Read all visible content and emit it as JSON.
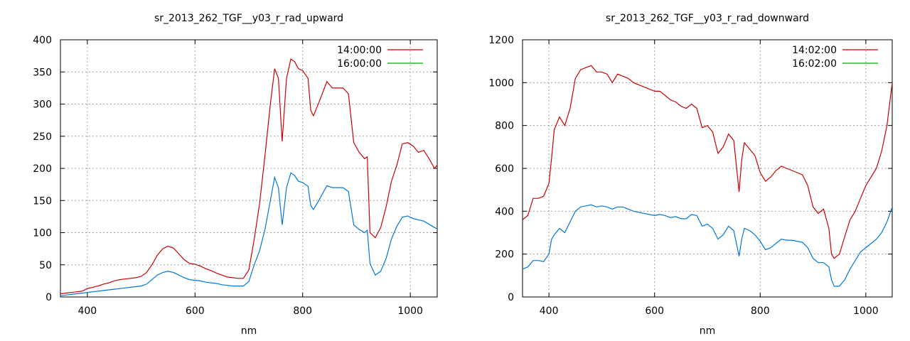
{
  "chart_data": [
    {
      "type": "line",
      "title": "sr_2013_262_TGF__y03_r_rad_upward",
      "xlabel": "nm",
      "ylabel": "",
      "xlim": [
        350,
        1050
      ],
      "ylim": [
        0,
        400
      ],
      "xticks": [
        400,
        600,
        800,
        1000
      ],
      "yticks": [
        0,
        50,
        100,
        150,
        200,
        250,
        300,
        350,
        400
      ],
      "grid": true,
      "legend_position": "top-right",
      "series": [
        {
          "name": "14:00:00",
          "color": "#cc0000",
          "x": [
            350,
            360,
            370,
            380,
            390,
            400,
            410,
            420,
            430,
            440,
            450,
            460,
            470,
            480,
            490,
            500,
            510,
            520,
            530,
            540,
            550,
            560,
            570,
            580,
            590,
            600,
            610,
            620,
            630,
            640,
            650,
            660,
            670,
            680,
            690,
            700,
            710,
            720,
            730,
            740,
            748,
            755,
            762,
            770,
            778,
            785,
            792,
            800,
            810,
            815,
            820,
            830,
            845,
            855,
            865,
            875,
            885,
            895,
            905,
            915,
            920,
            925,
            935,
            945,
            955,
            965,
            975,
            985,
            995,
            1005,
            1015,
            1025,
            1035,
            1045,
            1050
          ],
          "y": [
            5,
            6,
            7,
            8,
            9,
            13,
            15,
            17,
            20,
            22,
            25,
            27,
            28,
            29,
            30,
            32,
            38,
            50,
            65,
            75,
            79,
            76,
            67,
            58,
            52,
            51,
            48,
            44,
            41,
            37,
            34,
            31,
            30,
            29,
            29,
            42,
            90,
            145,
            220,
            300,
            355,
            340,
            242,
            340,
            370,
            366,
            355,
            352,
            340,
            290,
            282,
            302,
            335,
            325,
            325,
            325,
            316,
            240,
            225,
            215,
            218,
            100,
            92,
            108,
            140,
            180,
            205,
            238,
            240,
            235,
            225,
            228,
            215,
            200,
            205
          ]
        },
        {
          "name": "16:00:00",
          "color": "#00aa00",
          "x": [
            350,
            360,
            370,
            380,
            390,
            400,
            410,
            420,
            430,
            440,
            450,
            460,
            470,
            480,
            490,
            500,
            510,
            520,
            530,
            540,
            550,
            560,
            570,
            580,
            590,
            600,
            610,
            620,
            630,
            640,
            650,
            660,
            670,
            680,
            690,
            700,
            710,
            720,
            730,
            740,
            748,
            755,
            762,
            770,
            778,
            785,
            792,
            800,
            810,
            815,
            820,
            830,
            845,
            855,
            865,
            875,
            885,
            895,
            905,
            915,
            920,
            925,
            935,
            945,
            955,
            965,
            975,
            985,
            995,
            1005,
            1015,
            1025,
            1035,
            1045,
            1050
          ],
          "y": [
            2,
            3,
            4,
            5,
            6,
            7,
            8,
            9,
            10,
            11,
            12,
            13,
            14,
            15,
            16,
            17,
            20,
            27,
            34,
            38,
            40,
            38,
            34,
            30,
            27,
            26,
            25,
            23,
            22,
            21,
            19,
            18,
            17,
            17,
            17,
            24,
            50,
            72,
            105,
            150,
            186,
            170,
            112,
            170,
            193,
            189,
            180,
            178,
            172,
            142,
            136,
            150,
            173,
            170,
            170,
            170,
            164,
            112,
            105,
            100,
            104,
            52,
            34,
            40,
            60,
            90,
            110,
            124,
            126,
            122,
            120,
            118,
            113,
            108,
            106
          ]
        }
      ]
    },
    {
      "type": "line",
      "title": "sr_2013_262_TGF__y03_r_rad_downward",
      "xlabel": "nm",
      "ylabel": "",
      "xlim": [
        350,
        1050
      ],
      "ylim": [
        0,
        1200
      ],
      "xticks": [
        400,
        600,
        800,
        1000
      ],
      "yticks": [
        0,
        200,
        400,
        600,
        800,
        1000,
        1200
      ],
      "grid": true,
      "legend_position": "top-right",
      "series": [
        {
          "name": "14:02:00",
          "color": "#cc0000",
          "x": [
            350,
            360,
            370,
            380,
            390,
            400,
            405,
            410,
            420,
            430,
            440,
            450,
            460,
            470,
            480,
            490,
            500,
            510,
            520,
            530,
            540,
            550,
            560,
            570,
            580,
            590,
            600,
            610,
            620,
            630,
            640,
            650,
            660,
            670,
            680,
            690,
            700,
            710,
            720,
            730,
            740,
            750,
            760,
            765,
            770,
            780,
            790,
            800,
            810,
            820,
            830,
            840,
            850,
            860,
            870,
            880,
            890,
            900,
            910,
            920,
            930,
            935,
            940,
            950,
            960,
            970,
            980,
            990,
            1000,
            1010,
            1020,
            1030,
            1040,
            1050
          ],
          "y": [
            360,
            380,
            460,
            460,
            470,
            530,
            650,
            780,
            840,
            800,
            880,
            1020,
            1060,
            1070,
            1080,
            1050,
            1050,
            1040,
            1000,
            1040,
            1030,
            1020,
            1000,
            990,
            980,
            970,
            960,
            960,
            940,
            920,
            910,
            890,
            880,
            900,
            880,
            790,
            800,
            770,
            670,
            700,
            760,
            730,
            490,
            640,
            720,
            690,
            660,
            580,
            540,
            560,
            590,
            610,
            600,
            590,
            580,
            570,
            520,
            420,
            390,
            410,
            320,
            200,
            180,
            200,
            280,
            360,
            400,
            460,
            520,
            560,
            600,
            680,
            800,
            1000
          ]
        },
        {
          "name": "16:02:00",
          "color": "#00aa00",
          "x": [
            350,
            360,
            370,
            380,
            390,
            400,
            405,
            410,
            420,
            430,
            440,
            450,
            460,
            470,
            480,
            490,
            500,
            510,
            520,
            530,
            540,
            550,
            560,
            570,
            580,
            590,
            600,
            610,
            620,
            630,
            640,
            650,
            660,
            670,
            680,
            690,
            700,
            710,
            720,
            730,
            740,
            750,
            760,
            765,
            770,
            780,
            790,
            800,
            810,
            820,
            830,
            840,
            850,
            860,
            870,
            880,
            890,
            900,
            910,
            920,
            930,
            935,
            940,
            950,
            960,
            970,
            980,
            990,
            1000,
            1010,
            1020,
            1030,
            1040,
            1050
          ],
          "y": [
            130,
            140,
            170,
            170,
            165,
            200,
            270,
            290,
            320,
            300,
            350,
            400,
            420,
            425,
            430,
            420,
            425,
            420,
            410,
            420,
            420,
            410,
            400,
            395,
            390,
            385,
            380,
            385,
            380,
            370,
            375,
            365,
            365,
            385,
            380,
            330,
            340,
            320,
            270,
            290,
            330,
            310,
            190,
            270,
            320,
            310,
            290,
            260,
            220,
            230,
            250,
            270,
            265,
            265,
            260,
            255,
            230,
            180,
            160,
            160,
            140,
            80,
            50,
            50,
            80,
            130,
            170,
            210,
            230,
            250,
            270,
            300,
            350,
            420
          ]
        }
      ]
    }
  ]
}
